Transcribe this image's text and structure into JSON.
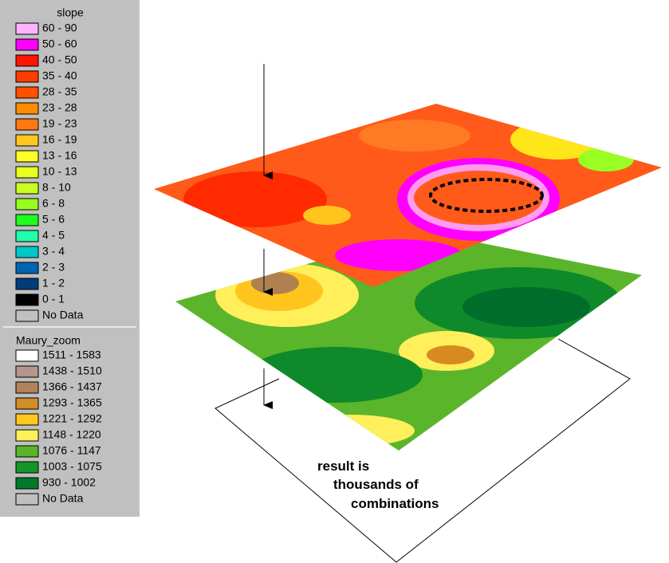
{
  "legends": [
    {
      "title": "slope",
      "items": [
        {
          "label": "60 - 90",
          "color": "#ffb4ff"
        },
        {
          "label": "50 - 60",
          "color": "#ff00ff"
        },
        {
          "label": "40 - 50",
          "color": "#ff1400"
        },
        {
          "label": "35 - 40",
          "color": "#ff3c00"
        },
        {
          "label": "28 - 35",
          "color": "#ff5000"
        },
        {
          "label": "23 - 28",
          "color": "#ff8c00"
        },
        {
          "label": "19 - 23",
          "color": "#ff7814"
        },
        {
          "label": "16 - 19",
          "color": "#ffc81e"
        },
        {
          "label": "13 - 16",
          "color": "#ffff28"
        },
        {
          "label": "10 - 13",
          "color": "#e6ff1e"
        },
        {
          "label": "8 - 10",
          "color": "#c8ff1e"
        },
        {
          "label": "6 - 8",
          "color": "#96ff1e"
        },
        {
          "label": "5 - 6",
          "color": "#1eff1e"
        },
        {
          "label": "4 - 5",
          "color": "#1effaa"
        },
        {
          "label": "3 - 4",
          "color": "#00c8c8"
        },
        {
          "label": "2 - 3",
          "color": "#0064b4"
        },
        {
          "label": "1 - 2",
          "color": "#003c78"
        },
        {
          "label": "0 - 1",
          "color": "#000000"
        },
        {
          "label": "No Data",
          "color": "#c0c0c0"
        }
      ]
    },
    {
      "title": "Maury_zoom",
      "items": [
        {
          "label": "1511 - 1583",
          "color": "#ffffff"
        },
        {
          "label": "1438 - 1510",
          "color": "#b4968c"
        },
        {
          "label": "1366 - 1437",
          "color": "#b4825a"
        },
        {
          "label": "1293 - 1365",
          "color": "#d28c28"
        },
        {
          "label": "1221 - 1292",
          "color": "#ffc81e"
        },
        {
          "label": "1148 - 1220",
          "color": "#fff05a"
        },
        {
          "label": "1076 - 1147",
          "color": "#5ab428"
        },
        {
          "label": "1003 - 1075",
          "color": "#149628"
        },
        {
          "label": "930 - 1002",
          "color": "#007828"
        },
        {
          "label": "No Data",
          "color": "#c0c0c0"
        }
      ]
    }
  ],
  "annotation": [
    "result is",
    "thousands of",
    "combinations"
  ]
}
